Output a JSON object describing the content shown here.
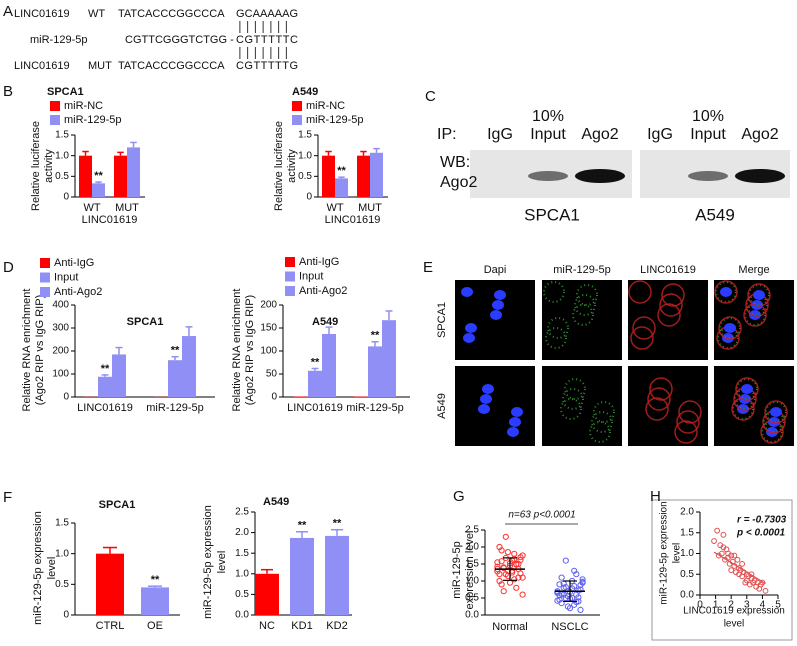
{
  "panel_labels": [
    "A",
    "B",
    "C",
    "D",
    "E",
    "F",
    "G",
    "H"
  ],
  "sequence_alignment": {
    "rows": [
      {
        "name": "LINC01619",
        "tag": "WT",
        "sequence": "TATCACCCGGCCCA",
        "site": "GCAAAAAG"
      },
      {
        "name": "miR-129-5p",
        "sequence": "CGTTCGGGTCTGG -",
        "site": "CGTTTTTC"
      },
      {
        "name": "LINC01619",
        "tag": "MUT",
        "sequence": "TATCACCCGGCCCA",
        "site": "CGTTTTTG"
      }
    ]
  },
  "western_blot": {
    "ip_label": "IP:",
    "wb_label": [
      "WB:",
      "Ago2"
    ],
    "blots": [
      {
        "cell": "SPCA1",
        "lanes": [
          [
            "IgG"
          ],
          [
            "10%",
            "Input"
          ],
          [
            "Ago2"
          ]
        ]
      },
      {
        "cell": "A549",
        "lanes": [
          [
            "IgG"
          ],
          [
            "10%",
            "Input"
          ],
          [
            "Ago2"
          ]
        ]
      }
    ]
  },
  "microscopy": {
    "columns": [
      "Dapi",
      "miR-129-5p",
      "LINC01619",
      "Merge"
    ],
    "rows": [
      "SPCA1",
      "A549"
    ]
  },
  "chart_data": [
    {
      "type": "bar",
      "title": "SPCA1",
      "categories": [
        "WT",
        "MUT"
      ],
      "xlabel": "LINC01619",
      "ylabel": [
        "Relative luciferase",
        "activity"
      ],
      "ylim": [
        0,
        1.5
      ],
      "yticks": [
        0,
        0.5,
        {
          "value": 1,
          "label": "1.0"
        },
        1.5
      ],
      "series": [
        {
          "name": "miR-NC",
          "color": "#ff0000",
          "values": [
            1.0,
            1.0
          ],
          "errors": [
            0.1,
            0.08
          ]
        },
        {
          "name": "miR-129-5p",
          "color": "#8f8ff5",
          "values": [
            0.33,
            1.2
          ],
          "errors": [
            0.03,
            0.12
          ],
          "significance": [
            "**",
            null
          ]
        }
      ]
    },
    {
      "type": "bar",
      "title": "A549",
      "categories": [
        "WT",
        "MUT"
      ],
      "xlabel": "LINC01619",
      "ylabel": [
        "Relative luciferase",
        "activity"
      ],
      "ylim": [
        0,
        1.5
      ],
      "yticks": [
        0,
        0.5,
        {
          "value": 1,
          "label": "1.0"
        },
        1.5
      ],
      "series": [
        {
          "name": "miR-NC",
          "color": "#ff0000",
          "values": [
            1.0,
            1.0
          ],
          "errors": [
            0.1,
            0.1
          ]
        },
        {
          "name": "miR-129-5p",
          "color": "#8f8ff5",
          "values": [
            0.45,
            1.07
          ],
          "errors": [
            0.03,
            0.1
          ],
          "significance": [
            "**",
            null
          ]
        }
      ]
    },
    {
      "type": "bar",
      "title": "SPCA1",
      "categories": [
        "LINC01619",
        "miR-129-5p"
      ],
      "ylabel": [
        "Relative RNA enrichment",
        "(Ago2 RIP vs IgG RIP)"
      ],
      "ylim": [
        0,
        400
      ],
      "yticks": [
        0,
        100,
        200,
        300,
        400
      ],
      "series": [
        {
          "name": "Anti-IgG",
          "color": "#ff0000",
          "values": [
            1,
            1
          ]
        },
        {
          "name": "Input",
          "color": "#8f8ff5",
          "values": [
            88,
            160
          ],
          "errors": [
            8,
            15
          ],
          "significance": [
            "**",
            "**"
          ]
        },
        {
          "name": "Anti-Ago2",
          "color": "#8f8ff5",
          "values": [
            185,
            265
          ],
          "errors": [
            30,
            40
          ]
        }
      ]
    },
    {
      "type": "bar",
      "title": "A549",
      "categories": [
        "LINC01619",
        "miR-129-5p"
      ],
      "ylabel": [
        "Relative RNA enrichment",
        "(Ago2 RIP vs IgG RIP)"
      ],
      "ylim": [
        0,
        200
      ],
      "yticks": [
        0,
        50,
        100,
        150,
        200
      ],
      "series": [
        {
          "name": "Anti-IgG",
          "color": "#ff0000",
          "values": [
            1,
            1
          ]
        },
        {
          "name": "Input",
          "color": "#8f8ff5",
          "values": [
            57,
            110
          ],
          "errors": [
            5,
            10
          ],
          "significance": [
            "**",
            "**"
          ]
        },
        {
          "name": "Anti-Ago2",
          "color": "#8f8ff5",
          "values": [
            137,
            167
          ],
          "errors": [
            15,
            20
          ]
        }
      ]
    },
    {
      "type": "bar",
      "title": "SPCA1",
      "categories": [
        "CTRL",
        "OE"
      ],
      "ylabel": [
        "miR-129-5p expression",
        "level"
      ],
      "ylim": [
        0,
        1.5
      ],
      "yticks": [
        0,
        0.5,
        {
          "value": 1,
          "label": "1.0"
        },
        1.5
      ],
      "values": [
        1.0,
        0.45
      ],
      "errors": [
        0.1,
        0.02
      ],
      "colors": [
        "#ff0000",
        "#8f8ff5"
      ],
      "significance": [
        null,
        "**"
      ]
    },
    {
      "type": "bar",
      "title": "A549",
      "categories": [
        "NC",
        "KD1",
        "KD2"
      ],
      "ylabel": [
        "miR-129-5p expression",
        "level"
      ],
      "ylim": [
        0,
        2.5
      ],
      "yticks": [
        {
          "value": 0,
          "label": "0.0"
        },
        0.5,
        {
          "value": 1,
          "label": "1.0"
        },
        1.5,
        {
          "value": 2,
          "label": "2.0"
        },
        2.5
      ],
      "values": [
        1.0,
        1.87,
        1.92
      ],
      "errors": [
        0.1,
        0.15,
        0.15
      ],
      "colors": [
        "#ff0000",
        "#8f8ff5",
        "#8f8ff5"
      ],
      "significance": [
        null,
        "**",
        "**"
      ]
    },
    {
      "type": "dot",
      "annotation": "n=63 p<0.0001",
      "ylabel": [
        "miR-129-5p",
        "expression level"
      ],
      "ylim": [
        0,
        2.5
      ],
      "yticks": [
        {
          "value": 0,
          "label": "0.0"
        },
        0.5,
        {
          "value": 1,
          "label": "1.0"
        },
        1.5,
        {
          "value": 2,
          "label": "2.0"
        },
        2.5
      ],
      "groups": [
        {
          "name": "Normal",
          "color": "#ff3030",
          "mean": 1.35,
          "sd": 0.33,
          "values": [
            1.35,
            1.6,
            1.2,
            1.8,
            0.9,
            1.5,
            1.4,
            1.1,
            2.3,
            1.7,
            1.3,
            0.6,
            1.45,
            1.55,
            1.25,
            1.0,
            1.65,
            1.9,
            0.8,
            1.38,
            1.5,
            1.2,
            1.62,
            1.15,
            1.75,
            0.95,
            1.42,
            1.3,
            2.0,
            1.05,
            1.58,
            1.48,
            0.7,
            1.35,
            1.68,
            1.22,
            1.85,
            1.1,
            1.52,
            1.28
          ]
        },
        {
          "name": "NSCLC",
          "color": "#6060f0",
          "mean": 0.7,
          "sd": 0.3,
          "values": [
            0.7,
            0.5,
            0.9,
            0.3,
            1.1,
            0.6,
            0.8,
            0.4,
            1.6,
            0.75,
            0.55,
            0.95,
            0.2,
            0.65,
            1.0,
            0.45,
            0.85,
            0.35,
            1.2,
            0.6,
            0.72,
            0.5,
            0.88,
            0.25,
            1.05,
            0.68,
            0.42,
            0.78,
            0.58,
            1.3,
            0.62,
            0.38,
            0.92,
            0.52,
            0.82,
            0.15,
            0.7,
            0.98,
            0.48,
            0.66
          ]
        }
      ]
    },
    {
      "type": "scatter",
      "annotations": [
        "r = -0.7303",
        "p < 0.0001"
      ],
      "xlabel": [
        "LINC01619 expression",
        "level"
      ],
      "ylabel": [
        "miR-129-5p expression",
        "level"
      ],
      "color": "#e05050",
      "xlim": [
        0,
        5
      ],
      "xticks": [
        0,
        1,
        2,
        3,
        4,
        5
      ],
      "ylim": [
        0,
        2
      ],
      "yticks": [
        {
          "value": 0,
          "label": "0.0"
        },
        0.5,
        {
          "value": 1,
          "label": "1.0"
        },
        1.5,
        {
          "value": 2,
          "label": "2.0"
        }
      ],
      "fit": {
        "slope": -0.23,
        "intercept": 1.24
      },
      "x": [
        0.9,
        1.1,
        1.2,
        1.3,
        1.4,
        1.5,
        1.6,
        1.7,
        1.8,
        1.9,
        2.0,
        2.0,
        2.1,
        2.2,
        2.3,
        2.4,
        2.5,
        2.5,
        2.6,
        2.7,
        2.8,
        2.9,
        3.0,
        3.0,
        3.1,
        3.2,
        3.3,
        3.4,
        3.5,
        3.6,
        3.7,
        3.8,
        3.9,
        4.0,
        4.2,
        1.5,
        1.8,
        2.2,
        2.7,
        3.3
      ],
      "y": [
        1.3,
        1.55,
        0.95,
        1.2,
        1.0,
        1.45,
        0.85,
        1.1,
        0.9,
        0.75,
        0.95,
        0.6,
        0.8,
        0.7,
        0.55,
        0.85,
        0.5,
        0.65,
        0.6,
        0.45,
        0.55,
        0.3,
        0.5,
        0.35,
        0.45,
        0.25,
        0.4,
        0.3,
        0.35,
        0.2,
        0.3,
        0.15,
        0.25,
        0.3,
        0.1,
        1.15,
        1.0,
        0.95,
        0.75,
        0.5
      ]
    }
  ]
}
